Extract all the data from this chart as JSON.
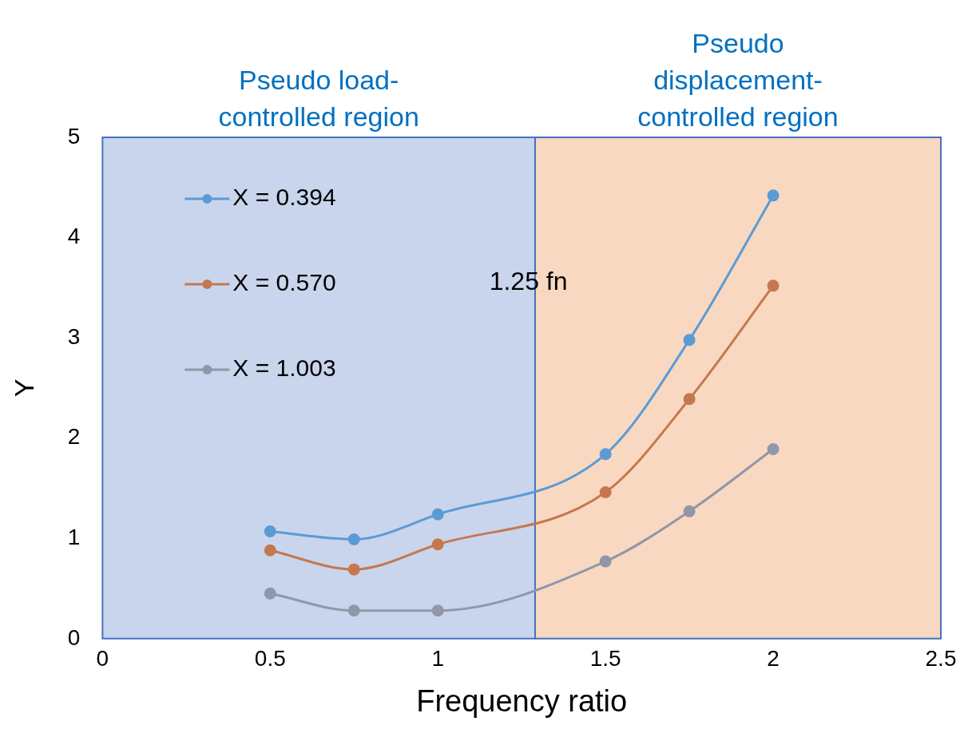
{
  "chart_data": {
    "type": "line",
    "xlabel": "Frequency ratio",
    "ylabel": "Y",
    "x": [
      0.5,
      0.75,
      1,
      1.5,
      1.75,
      2
    ],
    "series": [
      {
        "name": "X = 0.394",
        "color": "#5b9bd5",
        "values": [
          1.07,
          0.99,
          1.24,
          1.84,
          2.98,
          4.42
        ]
      },
      {
        "name": "X = 0.570",
        "color": "#c5784f",
        "values": [
          0.88,
          0.69,
          0.94,
          1.46,
          2.39,
          3.52
        ]
      },
      {
        "name": "X = 1.003",
        "color": "#8f97a8",
        "values": [
          0.45,
          0.28,
          0.28,
          0.77,
          1.27,
          1.89
        ]
      }
    ],
    "xlim": [
      0,
      2.5
    ],
    "xticks": [
      0,
      0.5,
      1,
      1.5,
      2,
      2.5
    ],
    "ylim": [
      0,
      5
    ],
    "yticks": [
      0,
      1,
      2,
      3,
      4,
      5
    ],
    "bands": [
      {
        "axis": "x",
        "from": 0,
        "to": 1.29,
        "label": "Pseudo load-controlled region",
        "color": "#c9d5ec"
      },
      {
        "axis": "x",
        "from": 1.29,
        "to": 2.5,
        "label": "Pseudo displacement-controlled region",
        "color": "#f9d8c1"
      }
    ],
    "annotations": [
      "1.25 fn"
    ],
    "legend": "top left",
    "marker": "circle",
    "line_style": "solid"
  }
}
